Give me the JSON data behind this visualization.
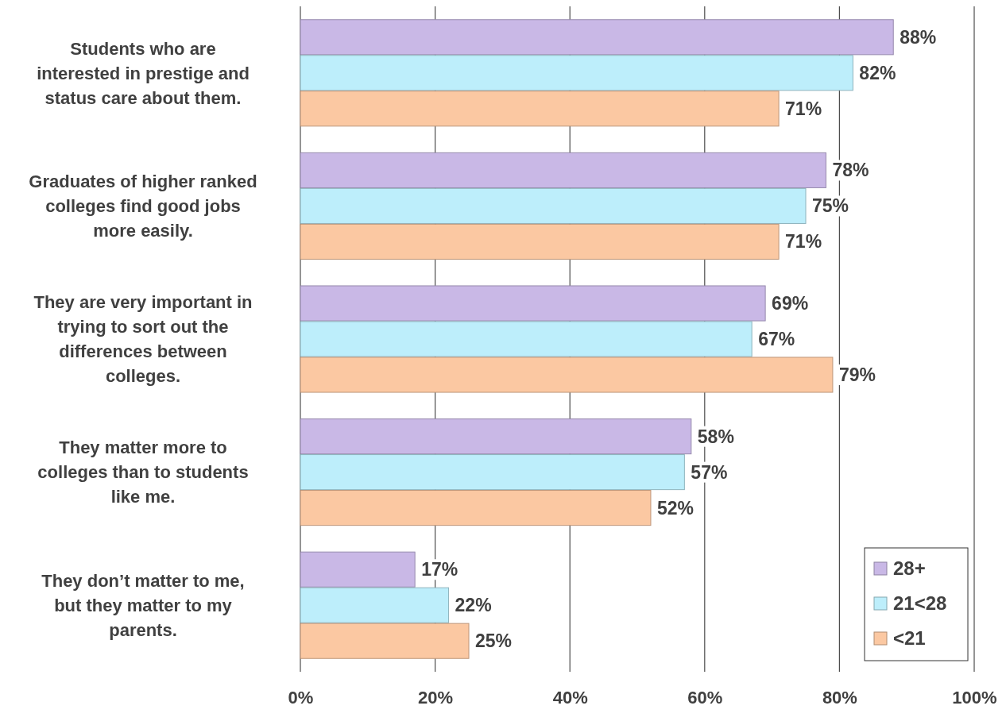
{
  "chart_data": {
    "type": "bar",
    "orientation": "horizontal",
    "categories": [
      "Students who are interested in prestige and status care about them.",
      "Graduates of higher ranked colleges find good jobs more easily.",
      "They are very important in trying to sort out the differences between colleges.",
      "They matter more to colleges than to students like me.",
      "They don’t matter to me, but they matter to my parents."
    ],
    "series": [
      {
        "name": "28+",
        "color": "#c9b8e6",
        "values": [
          88,
          78,
          69,
          58,
          17
        ],
        "value_labels": [
          "88%",
          "78%",
          "69%",
          "58%",
          "17%"
        ]
      },
      {
        "name": "21<28",
        "color": "#bdeefb",
        "values": [
          82,
          75,
          67,
          57,
          22
        ],
        "value_labels": [
          "82%",
          "75%",
          "67%",
          "57%",
          "22%"
        ]
      },
      {
        "name": "<21",
        "color": "#fbc8a2",
        "values": [
          71,
          71,
          79,
          52,
          25
        ],
        "value_labels": [
          "71%",
          "71%",
          "79%",
          "52%",
          "25%"
        ]
      }
    ],
    "xlim": [
      0,
      100
    ],
    "xticks": [
      {
        "value": 0,
        "label": "0%"
      },
      {
        "value": 20,
        "label": "20%"
      },
      {
        "value": 40,
        "label": "40%"
      },
      {
        "value": 60,
        "label": "60%"
      },
      {
        "value": 80,
        "label": "80%"
      },
      {
        "value": 100,
        "label": "100%"
      }
    ],
    "grid": "x",
    "legend": "bottom right"
  }
}
